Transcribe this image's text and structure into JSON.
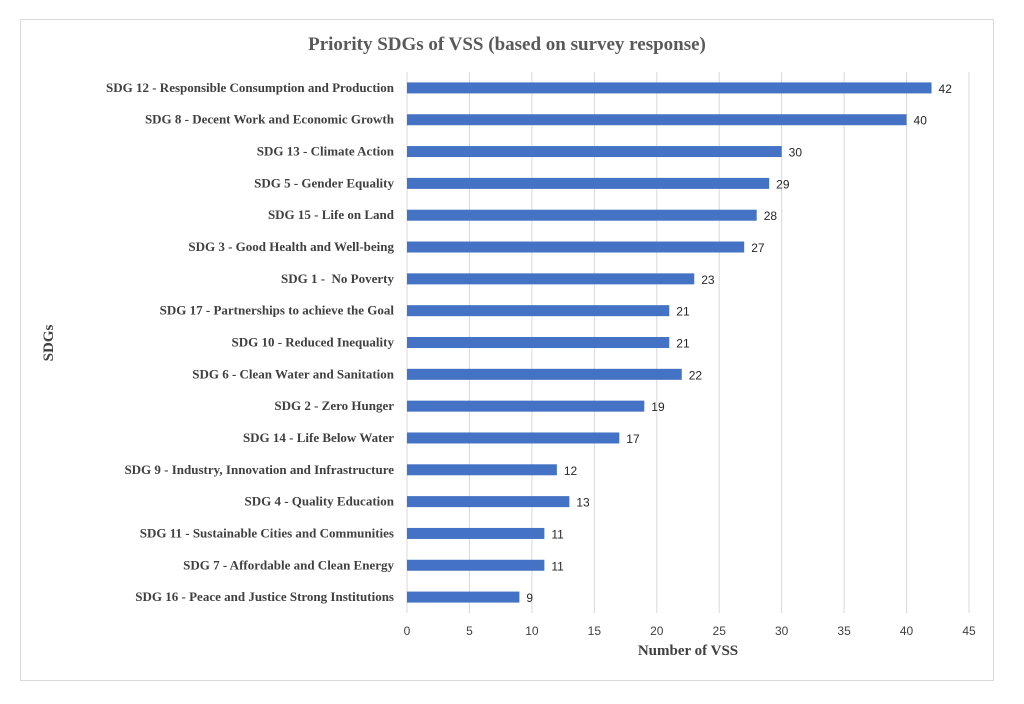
{
  "chart_data": {
    "type": "bar",
    "orientation": "horizontal",
    "title": "Priority SDGs of VSS (based on survey response)",
    "xlabel": "Number of VSS",
    "ylabel": "SDGs",
    "xlim": [
      0,
      45
    ],
    "xticks": [
      0,
      5,
      10,
      15,
      20,
      25,
      30,
      35,
      40,
      45
    ],
    "grid": true,
    "legend": "none",
    "bar_color": "#4472c4",
    "categories": [
      "SDG 12 - Responsible Consumption and Production",
      "SDG 8 - Decent Work and Economic Growth",
      "SDG 13 - Climate Action",
      "SDG 5 - Gender Equality",
      "SDG 15 - Life on Land",
      "SDG 3 - Good Health and Well-being",
      "SDG 1 -  No Poverty",
      "SDG 17 - Partnerships to achieve the Goal",
      "SDG 10 - Reduced Inequality",
      "SDG 6 - Clean Water and Sanitation",
      "SDG 2 - Zero Hunger",
      "SDG 14 - Life Below Water",
      "SDG 9 - Industry, Innovation and Infrastructure",
      "SDG 4 - Quality Education",
      "SDG 11 - Sustainable Cities and Communities",
      "SDG 7 - Affordable and Clean Energy",
      "SDG 16 - Peace and Justice Strong Institutions"
    ],
    "values": [
      42,
      40,
      30,
      29,
      28,
      27,
      23,
      21,
      21,
      22,
      19,
      17,
      12,
      13,
      11,
      11,
      9
    ]
  }
}
